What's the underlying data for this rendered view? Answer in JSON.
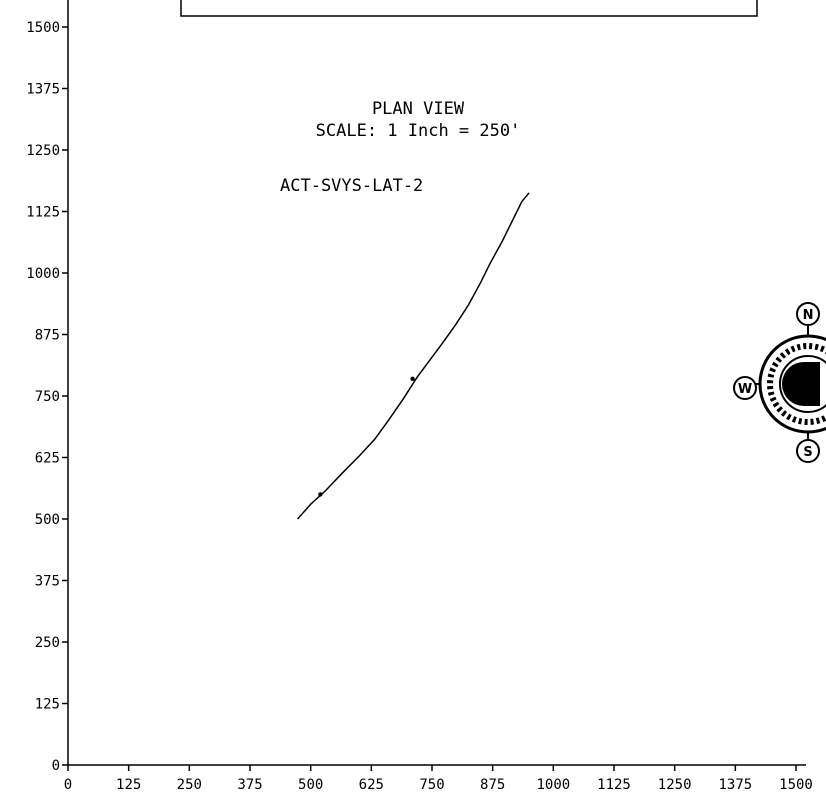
{
  "chart_data": {
    "type": "line",
    "title": "PLAN VIEW",
    "subtitle": "SCALE: 1 Inch = 250'",
    "xlabel": "",
    "ylabel": "",
    "xlim": [
      0,
      1500
    ],
    "ylim": [
      0,
      1500
    ],
    "x_ticks": [
      0,
      125,
      250,
      375,
      500,
      625,
      750,
      875,
      1000,
      1125,
      1250,
      1375,
      1500
    ],
    "y_ticks": [
      0,
      125,
      250,
      375,
      500,
      625,
      750,
      875,
      1000,
      1125,
      1250,
      1375,
      1500
    ],
    "grid": false,
    "series": [
      {
        "name": "ACT-SVYS-LAT-2",
        "color": "#000000",
        "x": [
          473,
          500,
          530,
          565,
          600,
          632,
          660,
          690,
          720,
          748,
          775,
          800,
          825,
          850,
          870,
          895,
          915,
          935,
          950
        ],
        "y": [
          500,
          530,
          557,
          593,
          628,
          662,
          700,
          743,
          789,
          826,
          862,
          897,
          935,
          980,
          1020,
          1065,
          1105,
          1145,
          1163
        ]
      }
    ],
    "markers": [
      {
        "x": 520,
        "y": 550
      },
      {
        "x": 710,
        "y": 785
      }
    ],
    "compass": {
      "icon": "compass-rose-icon",
      "letters": [
        "N",
        "W",
        "S"
      ]
    }
  }
}
